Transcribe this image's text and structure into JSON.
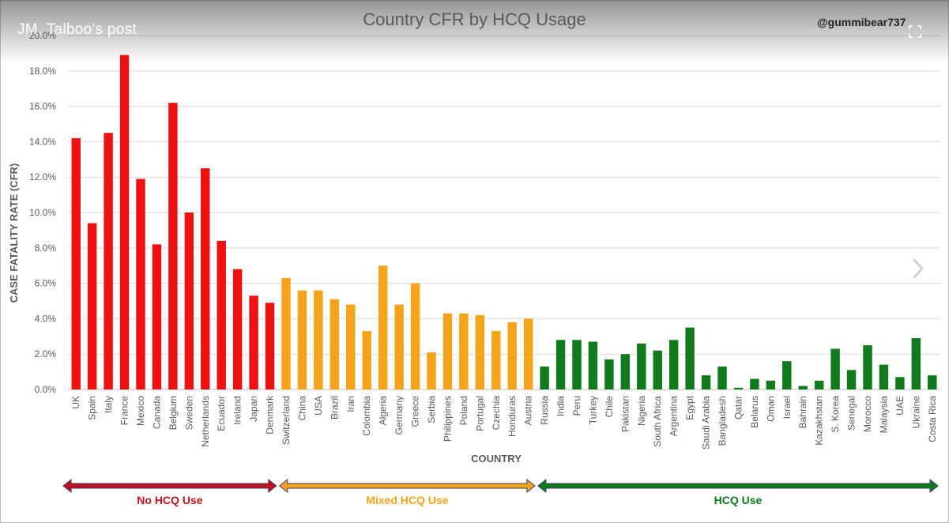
{
  "post_header": {
    "title": "JM. Talboo's post"
  },
  "watermark": "@gummibear737",
  "colors": {
    "no_hcq": "#ee1111",
    "mixed_hcq": "#f5a31a",
    "hcq": "#107a1c",
    "axis_text": "#595959",
    "grid": "#d9d9d9"
  },
  "icons": {
    "fullscreen": "fullscreen-icon",
    "next": "chevron-right-icon"
  },
  "groups": [
    {
      "label": "No HCQ Use",
      "color": "#c0111f",
      "from": 0,
      "to": 12
    },
    {
      "label": "Mixed HCQ Use",
      "color": "#f5a31a",
      "from": 13,
      "to": 28
    },
    {
      "label": "HCQ Use",
      "color": "#107a1c",
      "from": 29,
      "to": 53
    }
  ],
  "chart_data": {
    "type": "bar",
    "title": "Country CFR by HCQ Usage",
    "xlabel": "COUNTRY",
    "ylabel": "CASE FATALITY RATE (CFR)",
    "ylim": [
      0,
      20
    ],
    "yticks": [
      "0.0%",
      "2.0%",
      "4.0%",
      "6.0%",
      "8.0%",
      "10.0%",
      "12.0%",
      "14.0%",
      "16.0%",
      "18.0%",
      "20.0%"
    ],
    "grid": true,
    "categories": [
      "UK",
      "Spain",
      "Italy",
      "France",
      "Mexico",
      "Canada",
      "Belgium",
      "Sweden",
      "Netherlands",
      "Ecuador",
      "Ireland",
      "Japan",
      "Denmark",
      "Switzerland",
      "China",
      "USA",
      "Brazil",
      "Iran",
      "Colombia",
      "Algeria",
      "Germany",
      "Greece",
      "Serbia",
      "Philippines",
      "Poland",
      "Portugal",
      "Czechia",
      "Honduras",
      "Austria",
      "Russia",
      "India",
      "Peru",
      "Turkey",
      "Chile",
      "Pakistan",
      "Nigeria",
      "South Africa",
      "Argentina",
      "Egypt",
      "Saudi Arabia",
      "Bangladesh",
      "Qatar",
      "Belarus",
      "Oman",
      "Israel",
      "Bahrain",
      "Kazakhstan",
      "S. Korea",
      "Senegal",
      "Morocco",
      "Malaysia",
      "UAE",
      "Ukraine",
      "Costa Rica"
    ],
    "values": [
      14.2,
      9.4,
      14.5,
      18.9,
      11.9,
      8.2,
      16.2,
      10.0,
      12.5,
      8.4,
      6.8,
      5.3,
      4.9,
      6.3,
      5.6,
      5.6,
      5.1,
      4.8,
      3.3,
      7.0,
      4.8,
      6.0,
      2.1,
      4.3,
      4.3,
      4.2,
      3.3,
      3.8,
      4.0,
      1.3,
      2.8,
      2.8,
      2.7,
      1.7,
      2.0,
      2.6,
      2.2,
      2.8,
      3.5,
      0.8,
      1.3,
      0.1,
      0.6,
      0.5,
      1.6,
      0.2,
      0.5,
      2.3,
      1.1,
      2.5,
      1.4,
      0.7,
      2.9,
      0.8
    ],
    "bar_groups": [
      "no_hcq",
      "no_hcq",
      "no_hcq",
      "no_hcq",
      "no_hcq",
      "no_hcq",
      "no_hcq",
      "no_hcq",
      "no_hcq",
      "no_hcq",
      "no_hcq",
      "no_hcq",
      "no_hcq",
      "mixed_hcq",
      "mixed_hcq",
      "mixed_hcq",
      "mixed_hcq",
      "mixed_hcq",
      "mixed_hcq",
      "mixed_hcq",
      "mixed_hcq",
      "mixed_hcq",
      "mixed_hcq",
      "mixed_hcq",
      "mixed_hcq",
      "mixed_hcq",
      "mixed_hcq",
      "mixed_hcq",
      "mixed_hcq",
      "hcq",
      "hcq",
      "hcq",
      "hcq",
      "hcq",
      "hcq",
      "hcq",
      "hcq",
      "hcq",
      "hcq",
      "hcq",
      "hcq",
      "hcq",
      "hcq",
      "hcq",
      "hcq",
      "hcq",
      "hcq",
      "hcq",
      "hcq",
      "hcq",
      "hcq",
      "hcq",
      "hcq",
      "hcq"
    ]
  }
}
